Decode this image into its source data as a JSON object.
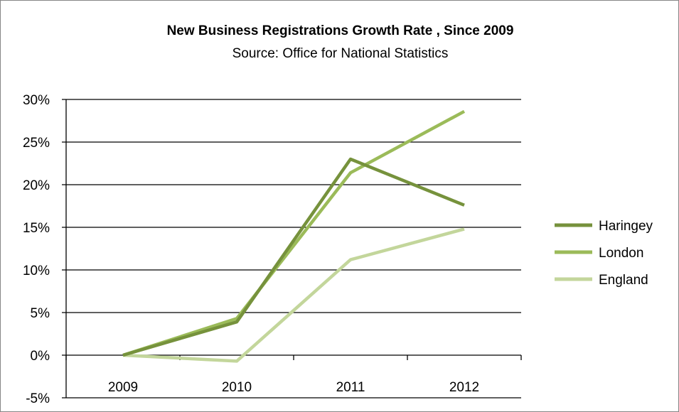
{
  "chart_data": {
    "type": "line",
    "title": "New Business Registrations Growth Rate , Since 2009",
    "subtitle": "Source: Office for National Statistics",
    "xlabel": "",
    "ylabel": "",
    "categories": [
      "2009",
      "2010",
      "2011",
      "2012"
    ],
    "y_ticks": [
      "-5%",
      "0%",
      "5%",
      "10%",
      "15%",
      "20%",
      "25%",
      "30%"
    ],
    "ylim": [
      -5,
      30
    ],
    "y_unit": "%",
    "grid": true,
    "legend_position": "right",
    "series": [
      {
        "name": "Haringey",
        "values": [
          0,
          3.9,
          23.0,
          17.6
        ],
        "color": "#76923c"
      },
      {
        "name": "London",
        "values": [
          0,
          4.3,
          21.4,
          28.6
        ],
        "color": "#9bbb59"
      },
      {
        "name": "England",
        "values": [
          0,
          -0.7,
          11.2,
          14.8
        ],
        "color": "#c3d69b"
      }
    ]
  }
}
